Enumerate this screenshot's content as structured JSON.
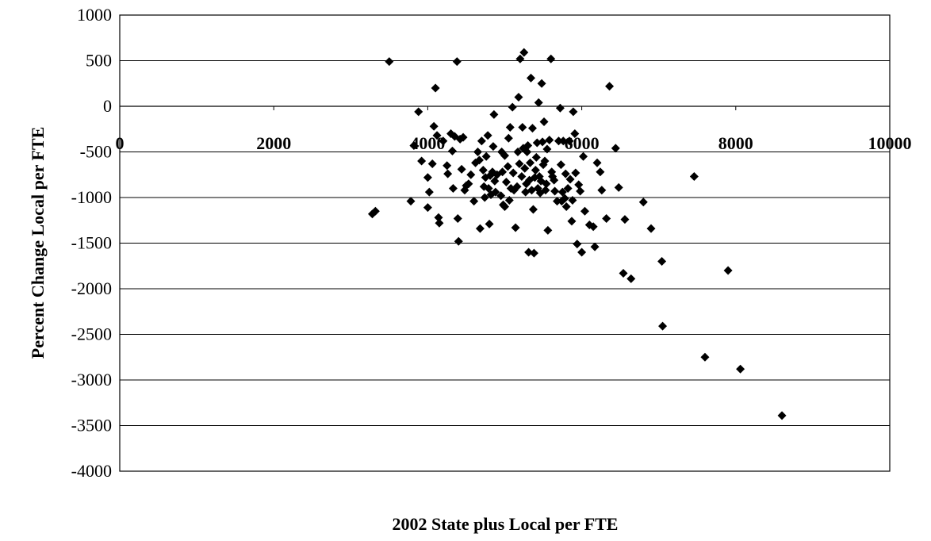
{
  "chart_data": {
    "type": "scatter",
    "title": "",
    "xlabel": "2002 State plus Local per FTE",
    "ylabel": "Percent Change Local per FTE",
    "xlim": [
      0,
      10000
    ],
    "ylim": [
      -4000,
      1000
    ],
    "xticks": [
      0,
      2000,
      4000,
      6000,
      8000,
      10000
    ],
    "yticks": [
      1000,
      500,
      0,
      -500,
      -1000,
      -1500,
      -2000,
      -2500,
      -3000,
      -3500,
      -4000
    ],
    "grid": "horizontal",
    "legend": "none",
    "marker_color": "#000000",
    "series": [
      {
        "points": [
          [
            3280,
            -1180
          ],
          [
            3320,
            -1150
          ],
          [
            3500,
            490
          ],
          [
            3780,
            -1040
          ],
          [
            3820,
            -430
          ],
          [
            3880,
            -60
          ],
          [
            3920,
            -600
          ],
          [
            4000,
            -780
          ],
          [
            4000,
            -1110
          ],
          [
            4020,
            -940
          ],
          [
            4060,
            -630
          ],
          [
            4080,
            -220
          ],
          [
            4100,
            200
          ],
          [
            4120,
            -320
          ],
          [
            4140,
            -1220
          ],
          [
            4150,
            -1280
          ],
          [
            4200,
            -380
          ],
          [
            4250,
            -650
          ],
          [
            4260,
            -740
          ],
          [
            4300,
            -300
          ],
          [
            4320,
            -490
          ],
          [
            4330,
            -900
          ],
          [
            4350,
            -330
          ],
          [
            4380,
            490
          ],
          [
            4390,
            -1230
          ],
          [
            4400,
            -1480
          ],
          [
            4420,
            -360
          ],
          [
            4440,
            -690
          ],
          [
            4460,
            -340
          ],
          [
            4480,
            -920
          ],
          [
            4500,
            -870
          ],
          [
            4530,
            -850
          ],
          [
            4560,
            -750
          ],
          [
            4600,
            -1040
          ],
          [
            4620,
            -620
          ],
          [
            4650,
            -500
          ],
          [
            4670,
            -590
          ],
          [
            4680,
            -1340
          ],
          [
            4700,
            -380
          ],
          [
            4720,
            -700
          ],
          [
            4730,
            -880
          ],
          [
            4740,
            -1000
          ],
          [
            4750,
            -780
          ],
          [
            4760,
            -550
          ],
          [
            4780,
            -320
          ],
          [
            4790,
            -900
          ],
          [
            4800,
            -1290
          ],
          [
            4810,
            -760
          ],
          [
            4820,
            -970
          ],
          [
            4840,
            -720
          ],
          [
            4850,
            -440
          ],
          [
            4860,
            -90
          ],
          [
            4870,
            -820
          ],
          [
            4880,
            -940
          ],
          [
            4900,
            -750
          ],
          [
            4950,
            -980
          ],
          [
            4960,
            -500
          ],
          [
            4970,
            -720
          ],
          [
            4980,
            -1080
          ],
          [
            5000,
            -1100
          ],
          [
            5000,
            -540
          ],
          [
            5020,
            -830
          ],
          [
            5040,
            -660
          ],
          [
            5050,
            -350
          ],
          [
            5060,
            -1030
          ],
          [
            5070,
            -230
          ],
          [
            5080,
            -900
          ],
          [
            5100,
            -10
          ],
          [
            5110,
            -730
          ],
          [
            5120,
            -920
          ],
          [
            5140,
            -1330
          ],
          [
            5160,
            -880
          ],
          [
            5170,
            -500
          ],
          [
            5180,
            100
          ],
          [
            5190,
            -630
          ],
          [
            5200,
            520
          ],
          [
            5220,
            -770
          ],
          [
            5230,
            -230
          ],
          [
            5240,
            -460
          ],
          [
            5250,
            590
          ],
          [
            5260,
            -680
          ],
          [
            5270,
            -940
          ],
          [
            5280,
            -850
          ],
          [
            5290,
            -500
          ],
          [
            5300,
            -430
          ],
          [
            5310,
            -1600
          ],
          [
            5320,
            -810
          ],
          [
            5330,
            -620
          ],
          [
            5340,
            310
          ],
          [
            5350,
            -920
          ],
          [
            5360,
            -240
          ],
          [
            5370,
            -1130
          ],
          [
            5380,
            -1610
          ],
          [
            5390,
            -780
          ],
          [
            5400,
            -700
          ],
          [
            5410,
            -560
          ],
          [
            5420,
            -400
          ],
          [
            5430,
            -900
          ],
          [
            5440,
            40
          ],
          [
            5450,
            -770
          ],
          [
            5460,
            -950
          ],
          [
            5470,
            -820
          ],
          [
            5480,
            250
          ],
          [
            5490,
            -390
          ],
          [
            5500,
            -640
          ],
          [
            5510,
            -170
          ],
          [
            5520,
            -600
          ],
          [
            5530,
            -920
          ],
          [
            5540,
            -850
          ],
          [
            5550,
            -470
          ],
          [
            5560,
            -1360
          ],
          [
            5580,
            -370
          ],
          [
            5600,
            520
          ],
          [
            5610,
            -720
          ],
          [
            5620,
            -770
          ],
          [
            5640,
            -810
          ],
          [
            5650,
            -930
          ],
          [
            5680,
            -1040
          ],
          [
            5700,
            -380
          ],
          [
            5720,
            -20
          ],
          [
            5730,
            -640
          ],
          [
            5740,
            -1040
          ],
          [
            5750,
            -940
          ],
          [
            5760,
            -380
          ],
          [
            5780,
            -1010
          ],
          [
            5790,
            -740
          ],
          [
            5800,
            -1100
          ],
          [
            5820,
            -900
          ],
          [
            5840,
            -380
          ],
          [
            5850,
            -800
          ],
          [
            5870,
            -1260
          ],
          [
            5880,
            -1030
          ],
          [
            5890,
            -60
          ],
          [
            5910,
            -300
          ],
          [
            5920,
            -730
          ],
          [
            5940,
            -1510
          ],
          [
            5960,
            -860
          ],
          [
            5980,
            -930
          ],
          [
            6000,
            -1600
          ],
          [
            6020,
            -550
          ],
          [
            6040,
            -1150
          ],
          [
            6100,
            -1300
          ],
          [
            6150,
            -1320
          ],
          [
            6170,
            -1540
          ],
          [
            6200,
            -620
          ],
          [
            6240,
            -720
          ],
          [
            6260,
            -920
          ],
          [
            6320,
            -1230
          ],
          [
            6360,
            220
          ],
          [
            6440,
            -460
          ],
          [
            6480,
            -890
          ],
          [
            6540,
            -1830
          ],
          [
            6560,
            -1240
          ],
          [
            6640,
            -1890
          ],
          [
            6800,
            -1050
          ],
          [
            6900,
            -1340
          ],
          [
            7040,
            -1700
          ],
          [
            7050,
            -2410
          ],
          [
            7460,
            -770
          ],
          [
            7600,
            -2750
          ],
          [
            7900,
            -1800
          ],
          [
            8060,
            -2880
          ],
          [
            8600,
            -3390
          ]
        ]
      }
    ]
  }
}
